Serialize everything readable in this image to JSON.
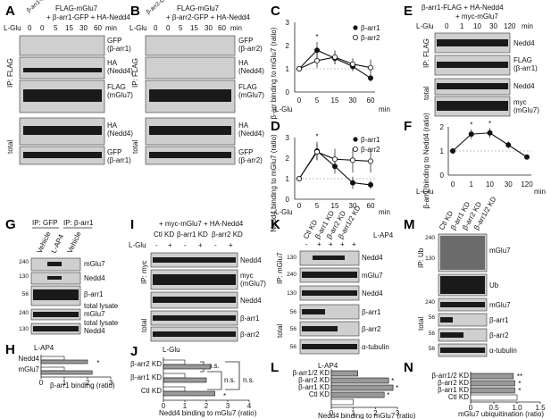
{
  "panels": {
    "A": {
      "letter": "A",
      "header": "FLAG-mGlu7",
      "header2": "+ β-arr1-GFP + HA-Nedd4",
      "control_label": "β-arr1-GFP",
      "lglu": "L-Glu",
      "times": [
        "0",
        "0",
        "5",
        "15",
        "30",
        "60"
      ],
      "min": "min",
      "ip_label": "IP: FLAG",
      "total_label": "total",
      "blots": [
        "GFP",
        "(β-arr1)",
        "HA",
        "(Nedd4)",
        "FLAG",
        "(mGlu7)",
        "HA",
        "(Nedd4)",
        "GFP",
        "(β-arr1)"
      ]
    },
    "B": {
      "letter": "B",
      "header": "FLAG-mGlu7",
      "header2": "+ β-arr2-GFP + HA-Nedd4",
      "control_label": "β-arr2-GFP",
      "lglu": "L-Glu",
      "times": [
        "0",
        "0",
        "5",
        "15",
        "30",
        "60"
      ],
      "min": "min",
      "ip_label": "IP: FLAG",
      "total_label": "total",
      "blots": [
        "GFP",
        "(β-arr2)",
        "HA",
        "(Nedd4)",
        "FLAG",
        "(mGlu7)",
        "HA",
        "(Nedd4)",
        "GFP",
        "(β-arr2)"
      ]
    },
    "C": {
      "letter": "C",
      "ylabel": "β-arr binding to mGlu7 (ratio)",
      "xlabel": "L-Glu",
      "min": "min",
      "yticks": [
        "0",
        "1",
        "2",
        "3"
      ],
      "legend": [
        "β-arr1",
        "β-arr2"
      ]
    },
    "D": {
      "letter": "D",
      "ylabel": "Nedd4 binding to mGlu7 (ratio)",
      "xlabel": "L-Glu",
      "min": "min",
      "yticks": [
        "0",
        "1",
        "2",
        "3"
      ],
      "legend": [
        "β-arr1",
        "β-arr2"
      ]
    },
    "E": {
      "letter": "E",
      "header": "β-arr1-FLAG + HA-Nedd4",
      "header2": "+ myc-mGlu7",
      "lglu": "L-Glu",
      "times": [
        "0",
        "1",
        "10",
        "30",
        "120"
      ],
      "min": "min",
      "ip_label": "IP: FLAG",
      "total_label": "total",
      "blots": [
        "Nedd4",
        "FLAG",
        "(β-arr1)",
        "Nedd4",
        "myc",
        "(mGlu7)"
      ]
    },
    "F": {
      "letter": "F",
      "ylabel": "β-arr1 binding to Nedd4 (ratio)",
      "xlabel": "L-Glu",
      "min": "min",
      "yticks": [
        "0",
        "1",
        "2"
      ]
    },
    "G": {
      "letter": "G",
      "header_ip1": "IP: GFP",
      "header_ip2": "IP: β-arr1",
      "lanes": [
        "Vehicle",
        "L-AP4",
        "Vehicle"
      ],
      "mw": [
        "240",
        "130",
        "56",
        "240",
        "130"
      ],
      "blots": [
        "mGlu7",
        "Nedd4",
        "β-arr1",
        "total lysate",
        "mGlu7",
        "total lysate",
        "Nedd4"
      ]
    },
    "H": {
      "letter": "H",
      "title": "L-AP4",
      "xlabel": "β-arr1 binding (ratio)",
      "xticks": [
        "0",
        "1",
        "2",
        "3"
      ]
    },
    "I": {
      "letter": "I",
      "header": "+ myc-mGlu7 + HA-Nedd4",
      "groups": [
        "Ctl KD",
        "β-arr1 KD",
        "β-arr2 KD"
      ],
      "lglu": "L-Glu",
      "signs": [
        "-",
        "+",
        "-",
        "+",
        "-",
        "+"
      ],
      "ip_label": "IP: myc",
      "total_label": "total",
      "blots": [
        "Nedd4",
        "myc",
        "(mGlu7)",
        "Nedd4",
        "β-arr1",
        "β-arr2"
      ]
    },
    "J": {
      "letter": "J",
      "title": "L-Glu",
      "xlabel": "Nedd4 binding to mGlu7 (ratio)",
      "xticks": [
        "0",
        "1",
        "2",
        "3",
        "4"
      ],
      "ns": [
        "n.s.",
        "n.s.",
        "n.s."
      ]
    },
    "K": {
      "letter": "K",
      "lanes": [
        "Ctl KD",
        "β-arr1 KD",
        "β-arr2 KD",
        "β-arr1/2 KD"
      ],
      "lap4": "L-AP4",
      "signs": [
        "-",
        "+",
        "+",
        "+",
        "+"
      ],
      "ip_label": "IP: mGlu7",
      "total_label": "total",
      "mw": [
        "130",
        "240",
        "130",
        "56",
        "56",
        "56"
      ],
      "blots": [
        "Nedd4",
        "mGlu7",
        "Nedd4",
        "β-arr1",
        "β-arr2",
        "α-tubulin"
      ]
    },
    "L": {
      "letter": "L",
      "title": "L-AP4",
      "xlabel": "Nedd4 binding to mGlu7 (ratio)",
      "xticks": [
        "0",
        "1",
        "2",
        "3"
      ]
    },
    "M": {
      "letter": "M",
      "lanes": [
        "Ctl KD",
        "β-arr1 KD",
        "β-arr2 KD",
        "β-arr1/2 KD"
      ],
      "ip_label": "IP: Ub",
      "total_label": "total",
      "mw": [
        "240",
        "130",
        "240",
        "56",
        "56",
        "56"
      ],
      "blots": [
        "mGlu7",
        "Ub",
        "mGlu7",
        "β-arr1",
        "β-arr2",
        "α-tubulin"
      ]
    },
    "N": {
      "letter": "N",
      "xlabel": "mGlu7 ubiquitination (ratio)",
      "xticks": [
        "0",
        "0.5",
        "1.0",
        "1.5"
      ]
    }
  },
  "chart_data": [
    {
      "panel": "C",
      "type": "line",
      "x": [
        0,
        5,
        15,
        30,
        60
      ],
      "xlabel": "L-Glu",
      "ylabel": "β-arr binding to mGlu7 (ratio)",
      "ylim": [
        0,
        3
      ],
      "series": [
        {
          "name": "β-arr1",
          "values": [
            1.0,
            1.8,
            1.45,
            1.1,
            0.6
          ],
          "errors": [
            0.05,
            0.35,
            0.25,
            0.2,
            0.15
          ],
          "marker": "filled"
        },
        {
          "name": "β-arr2",
          "values": [
            1.0,
            1.35,
            1.5,
            1.2,
            1.05
          ],
          "errors": [
            0.05,
            0.3,
            0.3,
            0.25,
            0.35
          ],
          "marker": "open"
        }
      ],
      "annotations": [
        "*"
      ]
    },
    {
      "panel": "D",
      "type": "line",
      "x": [
        0,
        5,
        15,
        30,
        60
      ],
      "xlabel": "L-Glu",
      "ylabel": "Nedd4 binding to mGlu7 (ratio)",
      "ylim": [
        0,
        3
      ],
      "series": [
        {
          "name": "β-arr1",
          "values": [
            1.0,
            2.35,
            1.6,
            0.8,
            0.7
          ],
          "errors": [
            0.05,
            0.45,
            0.35,
            0.3,
            0.2
          ],
          "marker": "filled"
        },
        {
          "name": "β-arr2",
          "values": [
            1.0,
            2.3,
            1.95,
            1.9,
            1.85
          ],
          "errors": [
            0.05,
            0.4,
            0.5,
            0.6,
            0.55
          ],
          "marker": "open"
        }
      ],
      "annotations": [
        "*"
      ]
    },
    {
      "panel": "F",
      "type": "line",
      "x": [
        0,
        1,
        10,
        30,
        120
      ],
      "xlabel": "L-Glu",
      "ylabel": "β-arr1 binding to Nedd4 (ratio)",
      "ylim": [
        0,
        2
      ],
      "series": [
        {
          "values": [
            1.0,
            1.7,
            1.75,
            1.25,
            0.75
          ],
          "errors": [
            0.05,
            0.2,
            0.2,
            0.15,
            0.1
          ],
          "marker": "filled"
        }
      ],
      "annotations": [
        "*",
        "*"
      ]
    },
    {
      "panel": "H",
      "type": "bar",
      "orientation": "horizontal",
      "categories": [
        "Nedd4",
        "mGlu7"
      ],
      "values": [
        2.0,
        2.2
      ],
      "title": "L-AP4",
      "xlabel": "β-arr1 binding (ratio)",
      "xlim": [
        0,
        3
      ],
      "annotations": [
        "*"
      ]
    },
    {
      "panel": "J",
      "type": "bar",
      "orientation": "horizontal",
      "categories": [
        "β-arr2 KD",
        "β-arr1 KD",
        "Ctl KD"
      ],
      "series": [
        {
          "name": "-",
          "values": [
            1.0,
            1.0,
            1.0
          ]
        },
        {
          "name": "+",
          "values": [
            2.2,
            2.0,
            2.4
          ]
        }
      ],
      "title": "L-Glu",
      "xlabel": "Nedd4 binding to mGlu7 (ratio)",
      "xlim": [
        0,
        4
      ],
      "annotations": [
        "n.s.",
        "n.s.",
        "n.s.",
        "*"
      ]
    },
    {
      "panel": "L",
      "type": "bar",
      "orientation": "horizontal",
      "categories": [
        "β-arr1/2 KD",
        "β-arr2 KD",
        "β-arr1 KD",
        "Ctl KD",
        "Ctl KD (-)"
      ],
      "values": [
        1.2,
        2.6,
        2.8,
        2.4,
        1.0
      ],
      "title": "L-AP4",
      "xlabel": "Nedd4 binding to mGlu7 (ratio)",
      "xlim": [
        0,
        3
      ],
      "annotations": [
        "*",
        "*",
        "*"
      ]
    },
    {
      "panel": "N",
      "type": "bar",
      "orientation": "horizontal",
      "categories": [
        "β-arr1/2 KD",
        "β-arr2 KD",
        "β-arr1 KD",
        "Ctl KD"
      ],
      "values": [
        0.92,
        0.95,
        0.95,
        1.0
      ],
      "xlabel": "mGlu7 ubiquitination (ratio)",
      "xlim": [
        0,
        1.5
      ],
      "annotations": [
        "**",
        "*",
        "*"
      ]
    }
  ]
}
